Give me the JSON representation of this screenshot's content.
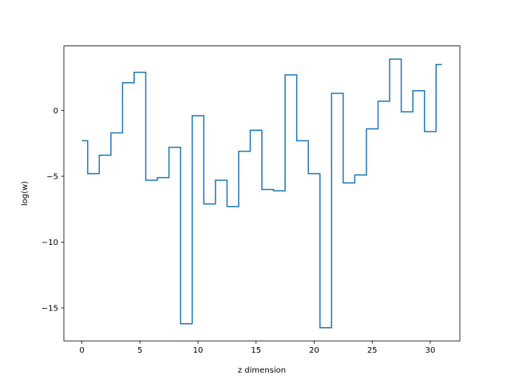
{
  "chart_data": {
    "type": "line",
    "drawstyle": "steps-mid",
    "xlabel": "z dimension",
    "ylabel": "log(w)",
    "xlim": [
      -1.55,
      32.55
    ],
    "ylim": [
      -17.5,
      4.9
    ],
    "xticks": [
      0,
      5,
      10,
      15,
      20,
      25,
      30
    ],
    "yticks": [
      -15,
      -10,
      -5,
      0
    ],
    "ytick_labels": [
      "−15",
      "−10",
      "−5",
      "0"
    ],
    "grid": false,
    "color": "#1f77b4",
    "x": [
      0,
      1,
      2,
      3,
      4,
      5,
      6,
      7,
      8,
      9,
      10,
      11,
      12,
      13,
      14,
      15,
      16,
      17,
      18,
      19,
      20,
      21,
      22,
      23,
      24,
      25,
      26,
      27,
      28,
      29,
      30,
      31
    ],
    "y": [
      -2.3,
      -4.8,
      -3.4,
      -1.7,
      2.1,
      2.9,
      -5.3,
      -5.1,
      -2.8,
      -16.2,
      -0.4,
      -7.1,
      -5.3,
      -7.3,
      -3.1,
      -1.5,
      -6.0,
      -6.1,
      2.7,
      -2.3,
      -4.8,
      -16.5,
      1.3,
      -5.5,
      -4.9,
      -1.4,
      0.7,
      3.9,
      -0.1,
      1.5,
      -1.6,
      3.5
    ]
  }
}
